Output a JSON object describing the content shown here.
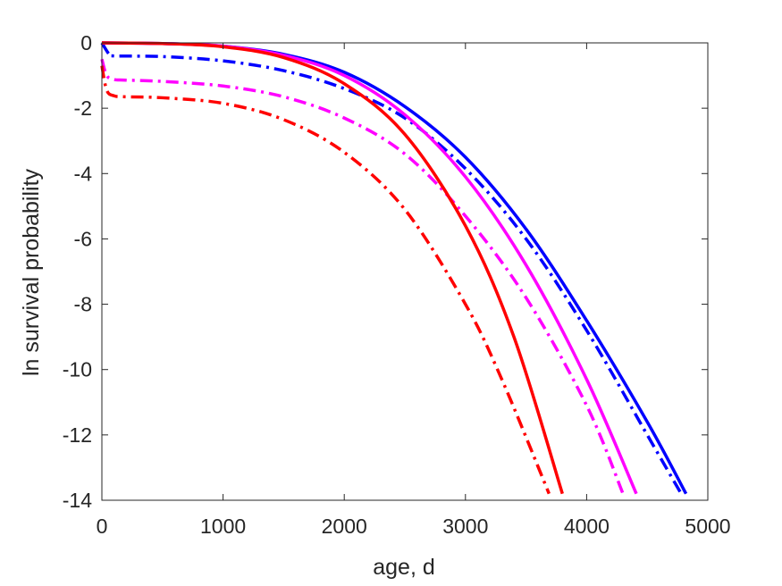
{
  "chart_data": {
    "type": "line",
    "title": "",
    "xlabel": "age, d",
    "ylabel": "ln survival probability",
    "xlim": [
      0,
      5000
    ],
    "ylim": [
      -14,
      0
    ],
    "xticks": [
      0,
      1000,
      2000,
      3000,
      4000,
      5000
    ],
    "yticks": [
      0,
      -2,
      -4,
      -6,
      -8,
      -10,
      -12,
      -14
    ],
    "xtick_labels": [
      "0",
      "1000",
      "2000",
      "3000",
      "4000",
      "5000"
    ],
    "ytick_labels": [
      "0",
      "-2",
      "-4",
      "-6",
      "-8",
      "-10",
      "-12",
      "-14"
    ],
    "grid": false,
    "series": [
      {
        "color": "#0000ff",
        "style": "solid",
        "x": [
          0,
          500,
          1000,
          1500,
          2000,
          2500,
          3000,
          3500,
          4000,
          4500,
          4820
        ],
        "y": [
          0,
          -0.02,
          -0.1,
          -0.35,
          -0.9,
          -1.95,
          -3.5,
          -5.7,
          -8.5,
          -11.6,
          -13.8
        ]
      },
      {
        "color": "#0000ff",
        "style": "dashdot",
        "x": [
          0,
          60,
          100,
          500,
          1000,
          1500,
          2000,
          2500,
          3000,
          3500,
          4000,
          4500,
          4780
        ],
        "y": [
          0,
          -0.35,
          -0.4,
          -0.42,
          -0.55,
          -0.85,
          -1.4,
          -2.3,
          -3.85,
          -6.0,
          -8.8,
          -12.0,
          -13.8
        ]
      },
      {
        "color": "#ff00ff",
        "style": "solid",
        "x": [
          0,
          500,
          1000,
          1500,
          2000,
          2500,
          3000,
          3500,
          4000,
          4410
        ],
        "y": [
          0,
          -0.02,
          -0.1,
          -0.38,
          -1.0,
          -2.2,
          -4.1,
          -6.8,
          -10.3,
          -13.8
        ]
      },
      {
        "color": "#ff00ff",
        "style": "dashdot",
        "x": [
          0,
          40,
          100,
          200,
          500,
          1000,
          1500,
          2000,
          2500,
          3000,
          3500,
          4000,
          4300
        ],
        "y": [
          -0.5,
          -1.0,
          -1.12,
          -1.14,
          -1.18,
          -1.32,
          -1.65,
          -2.3,
          -3.4,
          -5.3,
          -7.8,
          -11.1,
          -13.8
        ]
      },
      {
        "color": "#ff0000",
        "style": "solid",
        "x": [
          0,
          500,
          1000,
          1500,
          2000,
          2500,
          3000,
          3400,
          3800
        ],
        "y": [
          0,
          -0.02,
          -0.12,
          -0.45,
          -1.25,
          -2.8,
          -5.6,
          -9.0,
          -13.8
        ]
      },
      {
        "color": "#ff0000",
        "style": "dashdot",
        "x": [
          0,
          40,
          100,
          200,
          500,
          1000,
          1500,
          2000,
          2500,
          3000,
          3300,
          3690
        ],
        "y": [
          -0.7,
          -1.45,
          -1.62,
          -1.65,
          -1.68,
          -1.85,
          -2.35,
          -3.35,
          -5.1,
          -8.0,
          -10.3,
          -13.8
        ]
      }
    ]
  }
}
